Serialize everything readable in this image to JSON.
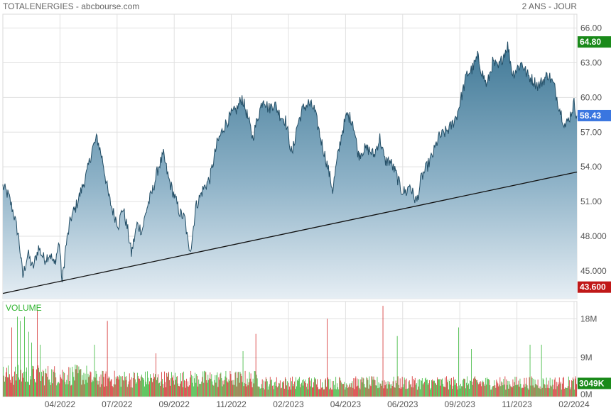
{
  "header": {
    "title": "TOTALENERGIES - abcbourse.com",
    "period": "2 ANS - JOUR"
  },
  "chart_data": {
    "type": "area",
    "price_axis": {
      "ylim": [
        42.6,
        67.2
      ],
      "ticks": [
        "66.00",
        "63.00",
        "60.00",
        "57.00",
        "54.00",
        "51.00",
        "48.000",
        "45.000"
      ],
      "tick_values": [
        66,
        63,
        60,
        57,
        54,
        51,
        48,
        45
      ],
      "markers": [
        {
          "label": "64.80",
          "value": 64.8,
          "color": "#1a8a1a"
        },
        {
          "label": "58.43",
          "value": 58.43,
          "color": "#3a76e0"
        },
        {
          "label": "43.600",
          "value": 43.6,
          "color": "#c01818"
        }
      ]
    },
    "x_axis": {
      "ticks": [
        "04/2022",
        "07/2022",
        "09/2022",
        "11/2022",
        "02/2023",
        "04/2023",
        "06/2023",
        "09/2023",
        "11/2023",
        "02/2024"
      ],
      "tick_index": [
        80,
        160,
        240,
        320,
        400,
        480,
        560,
        640,
        720,
        800
      ],
      "n_points": 804
    },
    "price_series": {
      "name": "",
      "keypoints": [
        [
          0,
          52.3
        ],
        [
          8,
          51.5
        ],
        [
          15,
          50.0
        ],
        [
          22,
          48.0
        ],
        [
          28,
          44.5
        ],
        [
          35,
          46.5
        ],
        [
          42,
          45.2
        ],
        [
          50,
          47.0
        ],
        [
          58,
          46.0
        ],
        [
          66,
          46.5
        ],
        [
          72,
          45.5
        ],
        [
          79,
          47.5
        ],
        [
          83,
          44.0
        ],
        [
          88,
          47.0
        ],
        [
          95,
          49.5
        ],
        [
          102,
          50.5
        ],
        [
          110,
          52.0
        ],
        [
          118,
          53.5
        ],
        [
          125,
          55.5
        ],
        [
          132,
          56.5
        ],
        [
          140,
          54.5
        ],
        [
          148,
          51.5
        ],
        [
          155,
          50.0
        ],
        [
          162,
          49.0
        ],
        [
          168,
          50.5
        ],
        [
          175,
          48.5
        ],
        [
          180,
          46.5
        ],
        [
          188,
          49.0
        ],
        [
          195,
          48.5
        ],
        [
          202,
          50.5
        ],
        [
          210,
          52.0
        ],
        [
          218,
          54.0
        ],
        [
          225,
          55.0
        ],
        [
          232,
          53.0
        ],
        [
          240,
          51.5
        ],
        [
          248,
          50.0
        ],
        [
          255,
          49.5
        ],
        [
          260,
          47.0
        ],
        [
          264,
          47.2
        ],
        [
          270,
          50.5
        ],
        [
          280,
          52.0
        ],
        [
          290,
          53.0
        ],
        [
          300,
          56.0
        ],
        [
          310,
          57.5
        ],
        [
          320,
          58.5
        ],
        [
          328,
          59.0
        ],
        [
          335,
          60.0
        ],
        [
          342,
          58.5
        ],
        [
          350,
          56.5
        ],
        [
          358,
          58.5
        ],
        [
          365,
          60.0
        ],
        [
          372,
          59.0
        ],
        [
          380,
          59.5
        ],
        [
          388,
          58.5
        ],
        [
          396,
          58.0
        ],
        [
          405,
          55.0
        ],
        [
          412,
          57.5
        ],
        [
          420,
          59.0
        ],
        [
          428,
          59.5
        ],
        [
          436,
          59.0
        ],
        [
          445,
          56.5
        ],
        [
          455,
          54.0
        ],
        [
          462,
          52.0
        ],
        [
          468,
          54.5
        ],
        [
          475,
          57.0
        ],
        [
          482,
          58.5
        ],
        [
          490,
          58.0
        ],
        [
          498,
          55.0
        ],
        [
          505,
          55.5
        ],
        [
          512,
          55.5
        ],
        [
          520,
          55.0
        ],
        [
          528,
          56.5
        ],
        [
          535,
          54.5
        ],
        [
          542,
          54.5
        ],
        [
          550,
          53.5
        ],
        [
          558,
          52.0
        ],
        [
          565,
          51.8
        ],
        [
          570,
          52.5
        ],
        [
          575,
          51.5
        ],
        [
          580,
          51.0
        ],
        [
          586,
          53.0
        ],
        [
          594,
          54.0
        ],
        [
          602,
          55.0
        ],
        [
          610,
          56.5
        ],
        [
          620,
          57.0
        ],
        [
          628,
          57.5
        ],
        [
          636,
          58.5
        ],
        [
          642,
          60.0
        ],
        [
          650,
          62.0
        ],
        [
          658,
          62.5
        ],
        [
          665,
          63.5
        ],
        [
          672,
          62.0
        ],
        [
          678,
          61.0
        ],
        [
          686,
          63.0
        ],
        [
          694,
          62.5
        ],
        [
          700,
          63.5
        ],
        [
          707,
          64.5
        ],
        [
          714,
          62.0
        ],
        [
          720,
          62.5
        ],
        [
          727,
          63.0
        ],
        [
          734,
          62.0
        ],
        [
          742,
          61.5
        ],
        [
          750,
          61.0
        ],
        [
          757,
          61.5
        ],
        [
          764,
          62.0
        ],
        [
          772,
          61.0
        ],
        [
          780,
          59.0
        ],
        [
          788,
          57.5
        ],
        [
          795,
          58.5
        ],
        [
          800,
          59.5
        ],
        [
          804,
          58.43
        ]
      ]
    },
    "trendline": {
      "start": [
        0,
        43.05
      ],
      "end": [
        804,
        53.55
      ]
    },
    "volume": {
      "label": "VOLUME",
      "ylim": [
        0,
        22
      ],
      "ticks": [
        "18M",
        "9M",
        "0M"
      ],
      "tick_values": [
        18,
        9,
        0
      ],
      "marker": {
        "label": "3049K",
        "value": 3.049,
        "color": "#1a8a1a"
      },
      "up_color": "#2db32d",
      "down_color": "#d22020",
      "spikes": [
        [
          12,
          16,
          "down"
        ],
        [
          20,
          18.5,
          "up"
        ],
        [
          24,
          17.5,
          "up"
        ],
        [
          30,
          18.5,
          "up"
        ],
        [
          36,
          15.0,
          "up"
        ],
        [
          40,
          12.5,
          "up"
        ],
        [
          48,
          20.0,
          "down"
        ],
        [
          52,
          12.0,
          "up"
        ],
        [
          128,
          12.0,
          "up"
        ],
        [
          146,
          17.5,
          "down"
        ],
        [
          214,
          10.0,
          "down"
        ],
        [
          336,
          10.5,
          "up"
        ],
        [
          354,
          14.5,
          "down"
        ],
        [
          454,
          18.0,
          "down"
        ],
        [
          532,
          21.0,
          "down"
        ],
        [
          552,
          14.0,
          "up"
        ],
        [
          638,
          16.0,
          "up"
        ],
        [
          656,
          11.0,
          "up"
        ],
        [
          738,
          12.0,
          "up"
        ],
        [
          754,
          12.0,
          "up"
        ],
        [
          806,
          14.0,
          "up"
        ]
      ]
    }
  }
}
